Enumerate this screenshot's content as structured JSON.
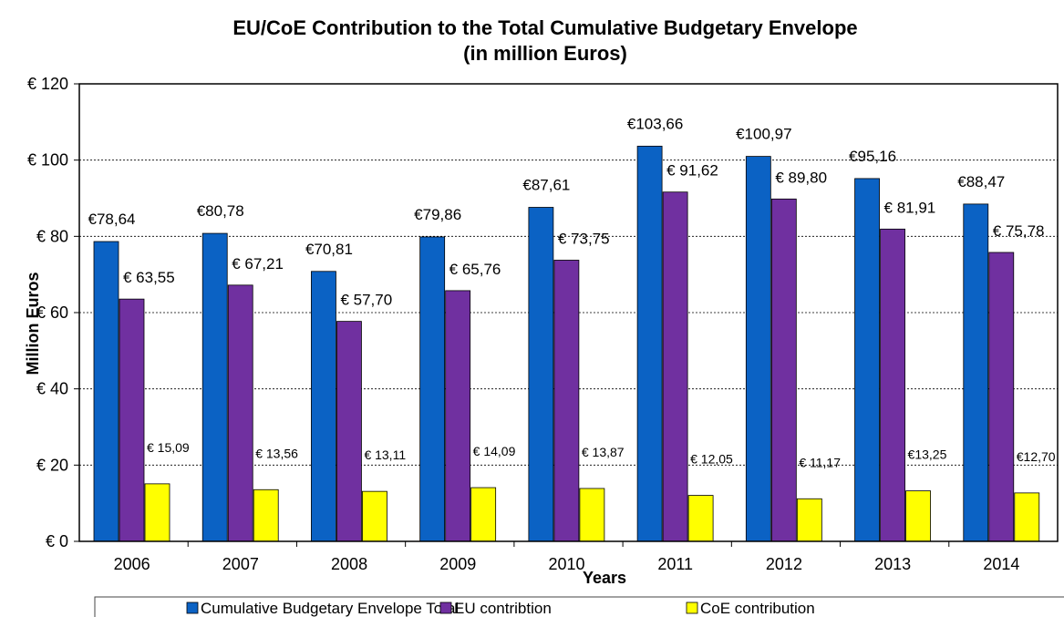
{
  "chart_data": {
    "type": "bar",
    "title": "EU/CoE Contribution to the Total Cumulative Budgetary Envelope",
    "subtitle": "(in million Euros)",
    "xlabel": "Years",
    "ylabel": "Million Euros",
    "ylim": [
      0,
      120
    ],
    "yticks": [
      0,
      20,
      40,
      60,
      80,
      100,
      120
    ],
    "ytick_labels": [
      "€ 0",
      "€ 20",
      "€ 40",
      "€ 60",
      "€ 80",
      "€ 100",
      "€ 120"
    ],
    "grid": true,
    "legend_position": "bottom",
    "categories": [
      "2006",
      "2007",
      "2008",
      "2009",
      "2010",
      "2011",
      "2012",
      "2013",
      "2014"
    ],
    "series": [
      {
        "name": "Cumulative Budgetary Envelope Total",
        "color": "#0b62c4",
        "values": [
          78.64,
          80.78,
          70.81,
          79.86,
          87.61,
          103.66,
          100.97,
          95.16,
          88.47
        ],
        "labels": [
          "€78,64",
          "€80,78",
          "€70,81",
          "€79,86",
          "€87,61",
          "€103,66",
          "€100,97",
          "€95,16",
          "€88,47"
        ]
      },
      {
        "name": "EU contribtion",
        "color": "#7030a0",
        "values": [
          63.55,
          67.21,
          57.7,
          65.76,
          73.75,
          91.62,
          89.8,
          81.91,
          75.78
        ],
        "labels": [
          "€ 63,55",
          "€ 67,21",
          "€ 57,70",
          "€ 65,76",
          "€ 73,75",
          "€ 91,62",
          "€ 89,80",
          "€ 81,91",
          "€ 75,78"
        ]
      },
      {
        "name": "CoE contribution",
        "color": "#ffff00",
        "values": [
          15.09,
          13.56,
          13.11,
          14.09,
          13.87,
          12.05,
          11.17,
          13.25,
          12.7
        ],
        "labels": [
          "€ 15,09",
          "€ 13,56",
          "€ 13,11",
          "€ 14,09",
          "€ 13,87",
          "€ 12,05",
          "€ 11,17",
          "€13,25",
          "€12,70"
        ]
      }
    ]
  }
}
